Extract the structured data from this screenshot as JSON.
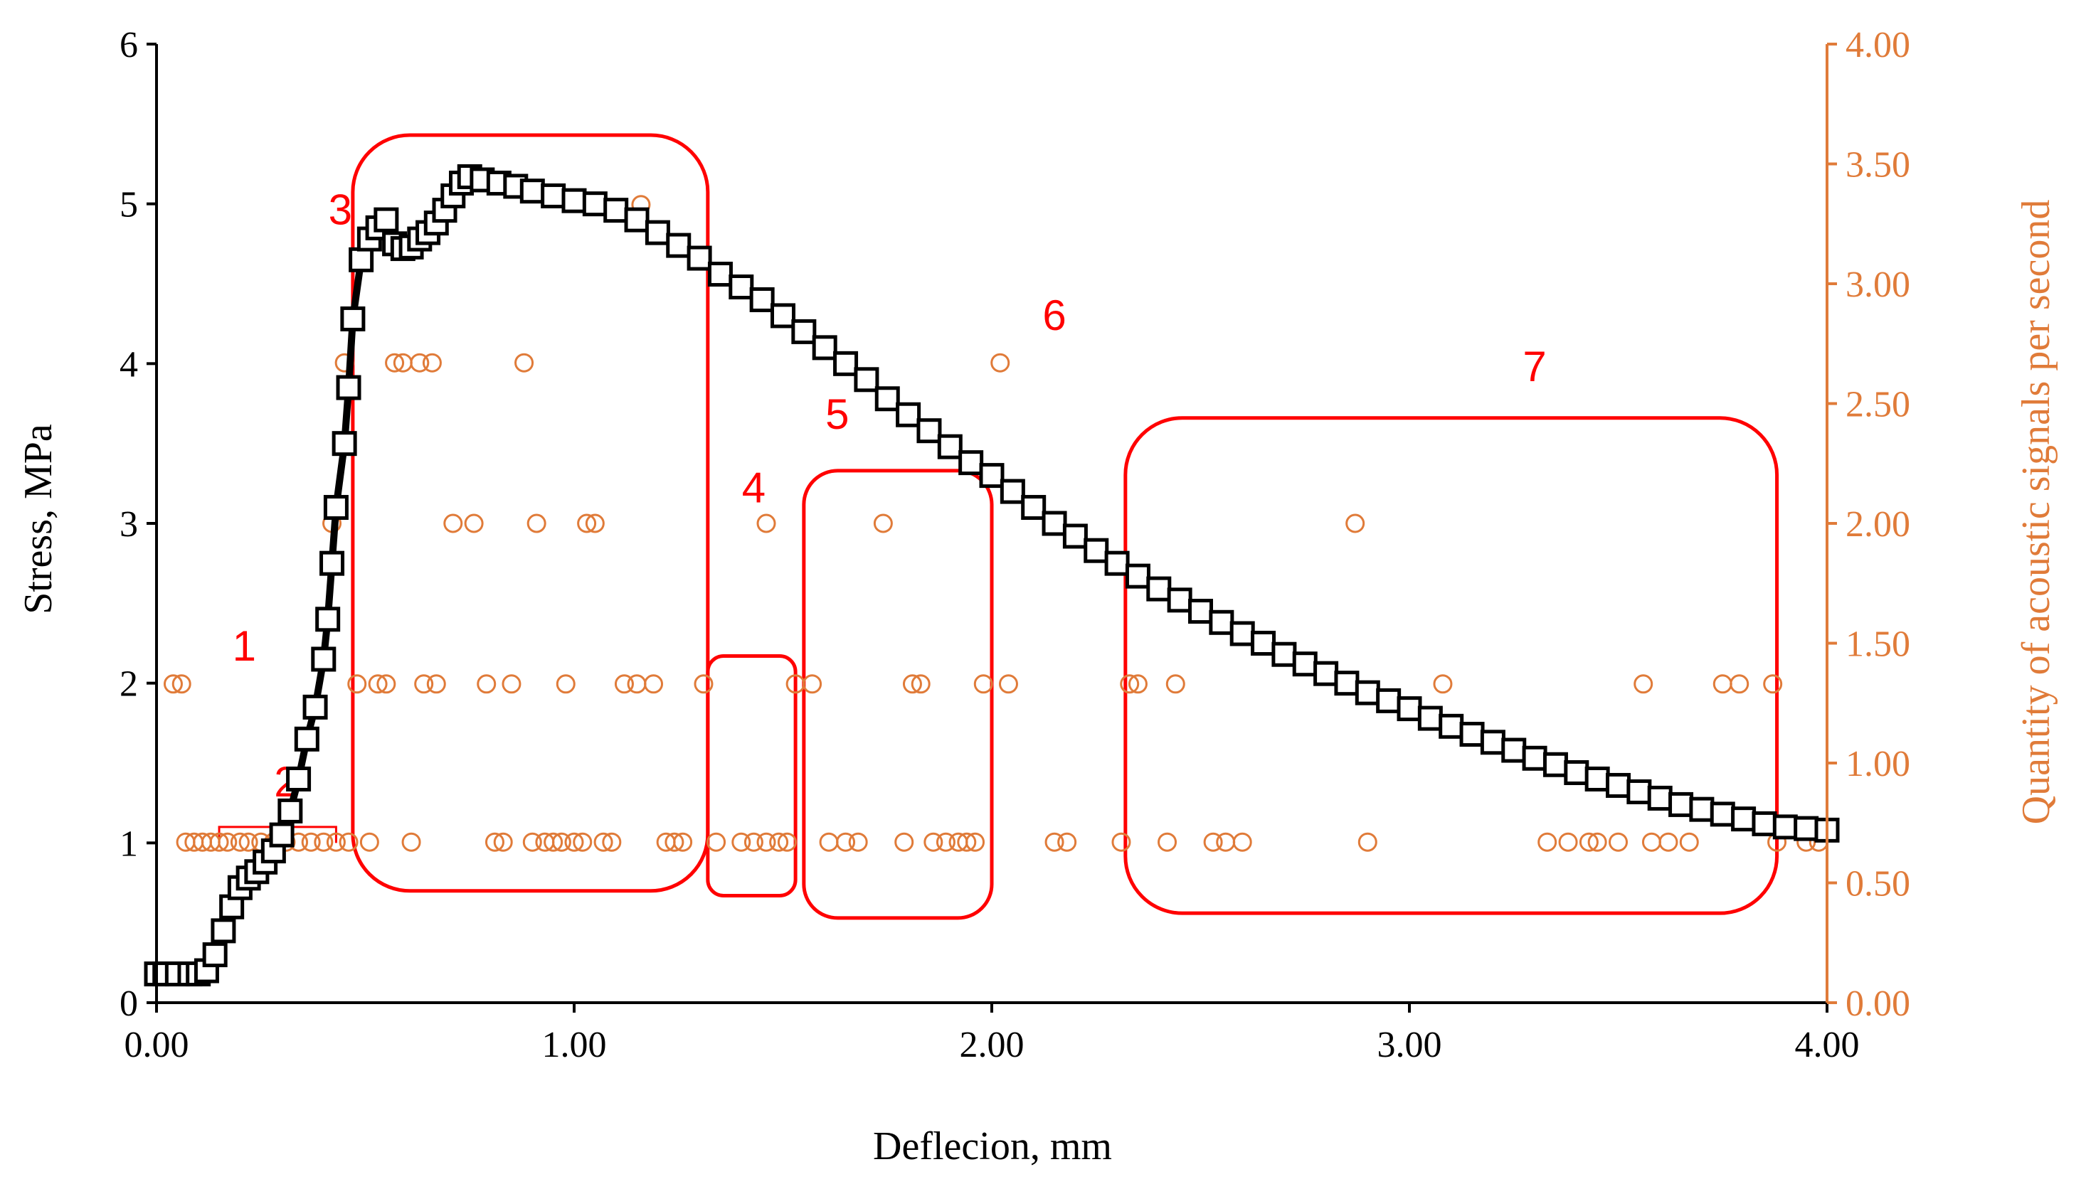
{
  "chart_data": {
    "type": "scatter",
    "title": "",
    "xlabel": "Deflecion, mm",
    "ylabel": "Stress, MPa",
    "ylabel_right": "Quantity of acoustic signals per second",
    "xlim": [
      0,
      4
    ],
    "ylim": [
      0,
      6
    ],
    "ylim_right": [
      0,
      4
    ],
    "x_ticks": [
      "0.00",
      "1.00",
      "2.00",
      "3.00",
      "4.00"
    ],
    "y_ticks": [
      "0",
      "1",
      "2",
      "3",
      "4",
      "5",
      "6"
    ],
    "y_right_ticks": [
      "0.00",
      "0.50",
      "1.00",
      "1.50",
      "2.00",
      "2.50",
      "3.00",
      "3.50",
      "4.00"
    ],
    "colors": {
      "stress": "#000000",
      "acoustic": "#E07B39",
      "zones": "#FF0000"
    },
    "stress_series": {
      "name": "Stress",
      "axis": "left",
      "marker": "square",
      "points": [
        [
          0.0,
          0.18
        ],
        [
          0.02,
          0.18
        ],
        [
          0.05,
          0.18
        ],
        [
          0.08,
          0.18
        ],
        [
          0.1,
          0.18
        ],
        [
          0.12,
          0.2
        ],
        [
          0.14,
          0.3
        ],
        [
          0.16,
          0.45
        ],
        [
          0.18,
          0.6
        ],
        [
          0.2,
          0.72
        ],
        [
          0.22,
          0.78
        ],
        [
          0.24,
          0.82
        ],
        [
          0.26,
          0.88
        ],
        [
          0.28,
          0.95
        ],
        [
          0.3,
          1.05
        ],
        [
          0.32,
          1.2
        ],
        [
          0.34,
          1.4
        ],
        [
          0.36,
          1.65
        ],
        [
          0.38,
          1.85
        ],
        [
          0.4,
          2.15
        ],
        [
          0.41,
          2.4
        ],
        [
          0.42,
          2.75
        ],
        [
          0.43,
          3.1
        ],
        [
          0.45,
          3.5
        ],
        [
          0.46,
          3.85
        ],
        [
          0.47,
          4.28
        ],
        [
          0.49,
          4.65
        ],
        [
          0.51,
          4.78
        ],
        [
          0.53,
          4.85
        ],
        [
          0.55,
          4.9
        ],
        [
          0.57,
          4.75
        ],
        [
          0.59,
          4.72
        ],
        [
          0.61,
          4.73
        ],
        [
          0.63,
          4.78
        ],
        [
          0.65,
          4.82
        ],
        [
          0.67,
          4.88
        ],
        [
          0.69,
          4.96
        ],
        [
          0.71,
          5.05
        ],
        [
          0.73,
          5.13
        ],
        [
          0.75,
          5.17
        ],
        [
          0.78,
          5.15
        ],
        [
          0.82,
          5.13
        ],
        [
          0.86,
          5.11
        ],
        [
          0.9,
          5.08
        ],
        [
          0.95,
          5.05
        ],
        [
          1.0,
          5.02
        ],
        [
          1.05,
          5.0
        ],
        [
          1.1,
          4.96
        ],
        [
          1.15,
          4.9
        ],
        [
          1.2,
          4.82
        ],
        [
          1.25,
          4.74
        ],
        [
          1.3,
          4.66
        ],
        [
          1.35,
          4.56
        ],
        [
          1.4,
          4.48
        ],
        [
          1.45,
          4.4
        ],
        [
          1.5,
          4.3
        ],
        [
          1.55,
          4.2
        ],
        [
          1.6,
          4.1
        ],
        [
          1.65,
          4.0
        ],
        [
          1.7,
          3.9
        ],
        [
          1.75,
          3.78
        ],
        [
          1.8,
          3.68
        ],
        [
          1.85,
          3.58
        ],
        [
          1.9,
          3.48
        ],
        [
          1.95,
          3.38
        ],
        [
          2.0,
          3.3
        ],
        [
          2.05,
          3.2
        ],
        [
          2.1,
          3.1
        ],
        [
          2.15,
          3.0
        ],
        [
          2.2,
          2.92
        ],
        [
          2.25,
          2.83
        ],
        [
          2.3,
          2.75
        ],
        [
          2.35,
          2.67
        ],
        [
          2.4,
          2.59
        ],
        [
          2.45,
          2.52
        ],
        [
          2.5,
          2.45
        ],
        [
          2.55,
          2.38
        ],
        [
          2.6,
          2.31
        ],
        [
          2.65,
          2.25
        ],
        [
          2.7,
          2.18
        ],
        [
          2.75,
          2.12
        ],
        [
          2.8,
          2.06
        ],
        [
          2.85,
          2.0
        ],
        [
          2.9,
          1.94
        ],
        [
          2.95,
          1.89
        ],
        [
          3.0,
          1.84
        ],
        [
          3.05,
          1.78
        ],
        [
          3.1,
          1.73
        ],
        [
          3.15,
          1.68
        ],
        [
          3.2,
          1.63
        ],
        [
          3.25,
          1.58
        ],
        [
          3.3,
          1.53
        ],
        [
          3.35,
          1.49
        ],
        [
          3.4,
          1.44
        ],
        [
          3.45,
          1.4
        ],
        [
          3.5,
          1.36
        ],
        [
          3.55,
          1.32
        ],
        [
          3.6,
          1.28
        ],
        [
          3.65,
          1.24
        ],
        [
          3.7,
          1.21
        ],
        [
          3.75,
          1.18
        ],
        [
          3.8,
          1.15
        ],
        [
          3.85,
          1.12
        ],
        [
          3.9,
          1.1
        ],
        [
          3.95,
          1.09
        ],
        [
          4.0,
          1.08
        ]
      ]
    },
    "acoustic_series": {
      "name": "Quantity of acoustic signals per second",
      "axis": "right",
      "marker": "circle",
      "points": [
        [
          0.04,
          1.33
        ],
        [
          0.06,
          1.33
        ],
        [
          0.07,
          0.67
        ],
        [
          0.09,
          0.67
        ],
        [
          0.11,
          0.67
        ],
        [
          0.13,
          0.67
        ],
        [
          0.15,
          0.67
        ],
        [
          0.17,
          0.67
        ],
        [
          0.2,
          0.67
        ],
        [
          0.22,
          0.67
        ],
        [
          0.25,
          0.67
        ],
        [
          0.28,
          0.67
        ],
        [
          0.31,
          0.67
        ],
        [
          0.34,
          0.67
        ],
        [
          0.37,
          0.67
        ],
        [
          0.4,
          0.67
        ],
        [
          0.42,
          2.0
        ],
        [
          0.43,
          0.67
        ],
        [
          0.45,
          2.67
        ],
        [
          0.46,
          0.67
        ],
        [
          0.48,
          1.33
        ],
        [
          0.51,
          0.67
        ],
        [
          0.53,
          1.33
        ],
        [
          0.55,
          1.33
        ],
        [
          0.57,
          2.67
        ],
        [
          0.59,
          2.67
        ],
        [
          0.61,
          0.67
        ],
        [
          0.63,
          2.67
        ],
        [
          0.64,
          1.33
        ],
        [
          0.66,
          2.67
        ],
        [
          0.67,
          1.33
        ],
        [
          0.71,
          2.0
        ],
        [
          0.76,
          2.0
        ],
        [
          0.79,
          1.33
        ],
        [
          0.81,
          0.67
        ],
        [
          0.83,
          0.67
        ],
        [
          0.85,
          1.33
        ],
        [
          0.88,
          2.67
        ],
        [
          0.9,
          0.67
        ],
        [
          0.91,
          2.0
        ],
        [
          0.93,
          0.67
        ],
        [
          0.95,
          0.67
        ],
        [
          0.97,
          0.67
        ],
        [
          0.98,
          1.33
        ],
        [
          1.0,
          0.67
        ],
        [
          1.02,
          0.67
        ],
        [
          1.03,
          2.0
        ],
        [
          1.05,
          2.0
        ],
        [
          1.07,
          0.67
        ],
        [
          1.09,
          0.67
        ],
        [
          1.12,
          1.33
        ],
        [
          1.15,
          1.33
        ],
        [
          1.16,
          3.33
        ],
        [
          1.19,
          1.33
        ],
        [
          1.22,
          0.67
        ],
        [
          1.24,
          0.67
        ],
        [
          1.26,
          0.67
        ],
        [
          1.31,
          1.33
        ],
        [
          1.34,
          0.67
        ],
        [
          1.4,
          0.67
        ],
        [
          1.43,
          0.67
        ],
        [
          1.46,
          2.0
        ],
        [
          1.46,
          0.67
        ],
        [
          1.49,
          0.67
        ],
        [
          1.51,
          0.67
        ],
        [
          1.53,
          1.33
        ],
        [
          1.57,
          1.33
        ],
        [
          1.61,
          0.67
        ],
        [
          1.65,
          0.67
        ],
        [
          1.68,
          0.67
        ],
        [
          1.74,
          2.0
        ],
        [
          1.79,
          0.67
        ],
        [
          1.81,
          1.33
        ],
        [
          1.83,
          1.33
        ],
        [
          1.86,
          0.67
        ],
        [
          1.89,
          0.67
        ],
        [
          1.92,
          0.67
        ],
        [
          1.94,
          0.67
        ],
        [
          1.96,
          0.67
        ],
        [
          1.98,
          1.33
        ],
        [
          2.02,
          2.67
        ],
        [
          2.04,
          1.33
        ],
        [
          2.15,
          0.67
        ],
        [
          2.18,
          0.67
        ],
        [
          2.31,
          0.67
        ],
        [
          2.33,
          1.33
        ],
        [
          2.35,
          1.33
        ],
        [
          2.42,
          0.67
        ],
        [
          2.44,
          1.33
        ],
        [
          2.53,
          0.67
        ],
        [
          2.56,
          0.67
        ],
        [
          2.6,
          0.67
        ],
        [
          2.87,
          2.0
        ],
        [
          2.9,
          0.67
        ],
        [
          3.08,
          1.33
        ],
        [
          3.33,
          0.67
        ],
        [
          3.38,
          0.67
        ],
        [
          3.43,
          0.67
        ],
        [
          3.45,
          0.67
        ],
        [
          3.5,
          0.67
        ],
        [
          3.56,
          1.33
        ],
        [
          3.58,
          0.67
        ],
        [
          3.62,
          0.67
        ],
        [
          3.67,
          0.67
        ],
        [
          3.75,
          1.33
        ],
        [
          3.79,
          1.33
        ],
        [
          3.87,
          1.33
        ],
        [
          3.88,
          0.67
        ],
        [
          3.95,
          0.67
        ],
        [
          3.98,
          0.67
        ]
      ]
    },
    "zones": [
      {
        "label": "1",
        "label_at": [
          0.21,
          2.23
        ]
      },
      {
        "label": "2",
        "label_at": [
          0.31,
          1.38
        ],
        "x_range": [
          0.15,
          0.43
        ],
        "y_range": [
          1.0,
          1.1
        ],
        "shape": "bracket"
      },
      {
        "label": "3",
        "label_at": [
          0.44,
          4.96
        ],
        "x_range": [
          0.47,
          1.32
        ],
        "y_range": [
          0.7,
          5.43
        ],
        "shape": "rounded-box"
      },
      {
        "label": "4",
        "label_at": [
          1.43,
          3.22
        ],
        "x_range": [
          1.32,
          1.53
        ],
        "y_range": [
          0.67,
          2.17
        ],
        "shape": "rounded-box"
      },
      {
        "label": "5",
        "label_at": [
          1.63,
          3.68
        ],
        "x_range": [
          1.55,
          2.0
        ],
        "y_range": [
          0.53,
          3.33
        ],
        "shape": "rounded-box"
      },
      {
        "label": "6",
        "label_at": [
          2.15,
          4.3
        ],
        "shape": "none"
      },
      {
        "label": "7",
        "label_at": [
          3.3,
          3.98
        ],
        "x_range": [
          2.32,
          3.88
        ],
        "y_range": [
          0.56,
          3.66
        ],
        "shape": "rounded-box"
      }
    ]
  }
}
